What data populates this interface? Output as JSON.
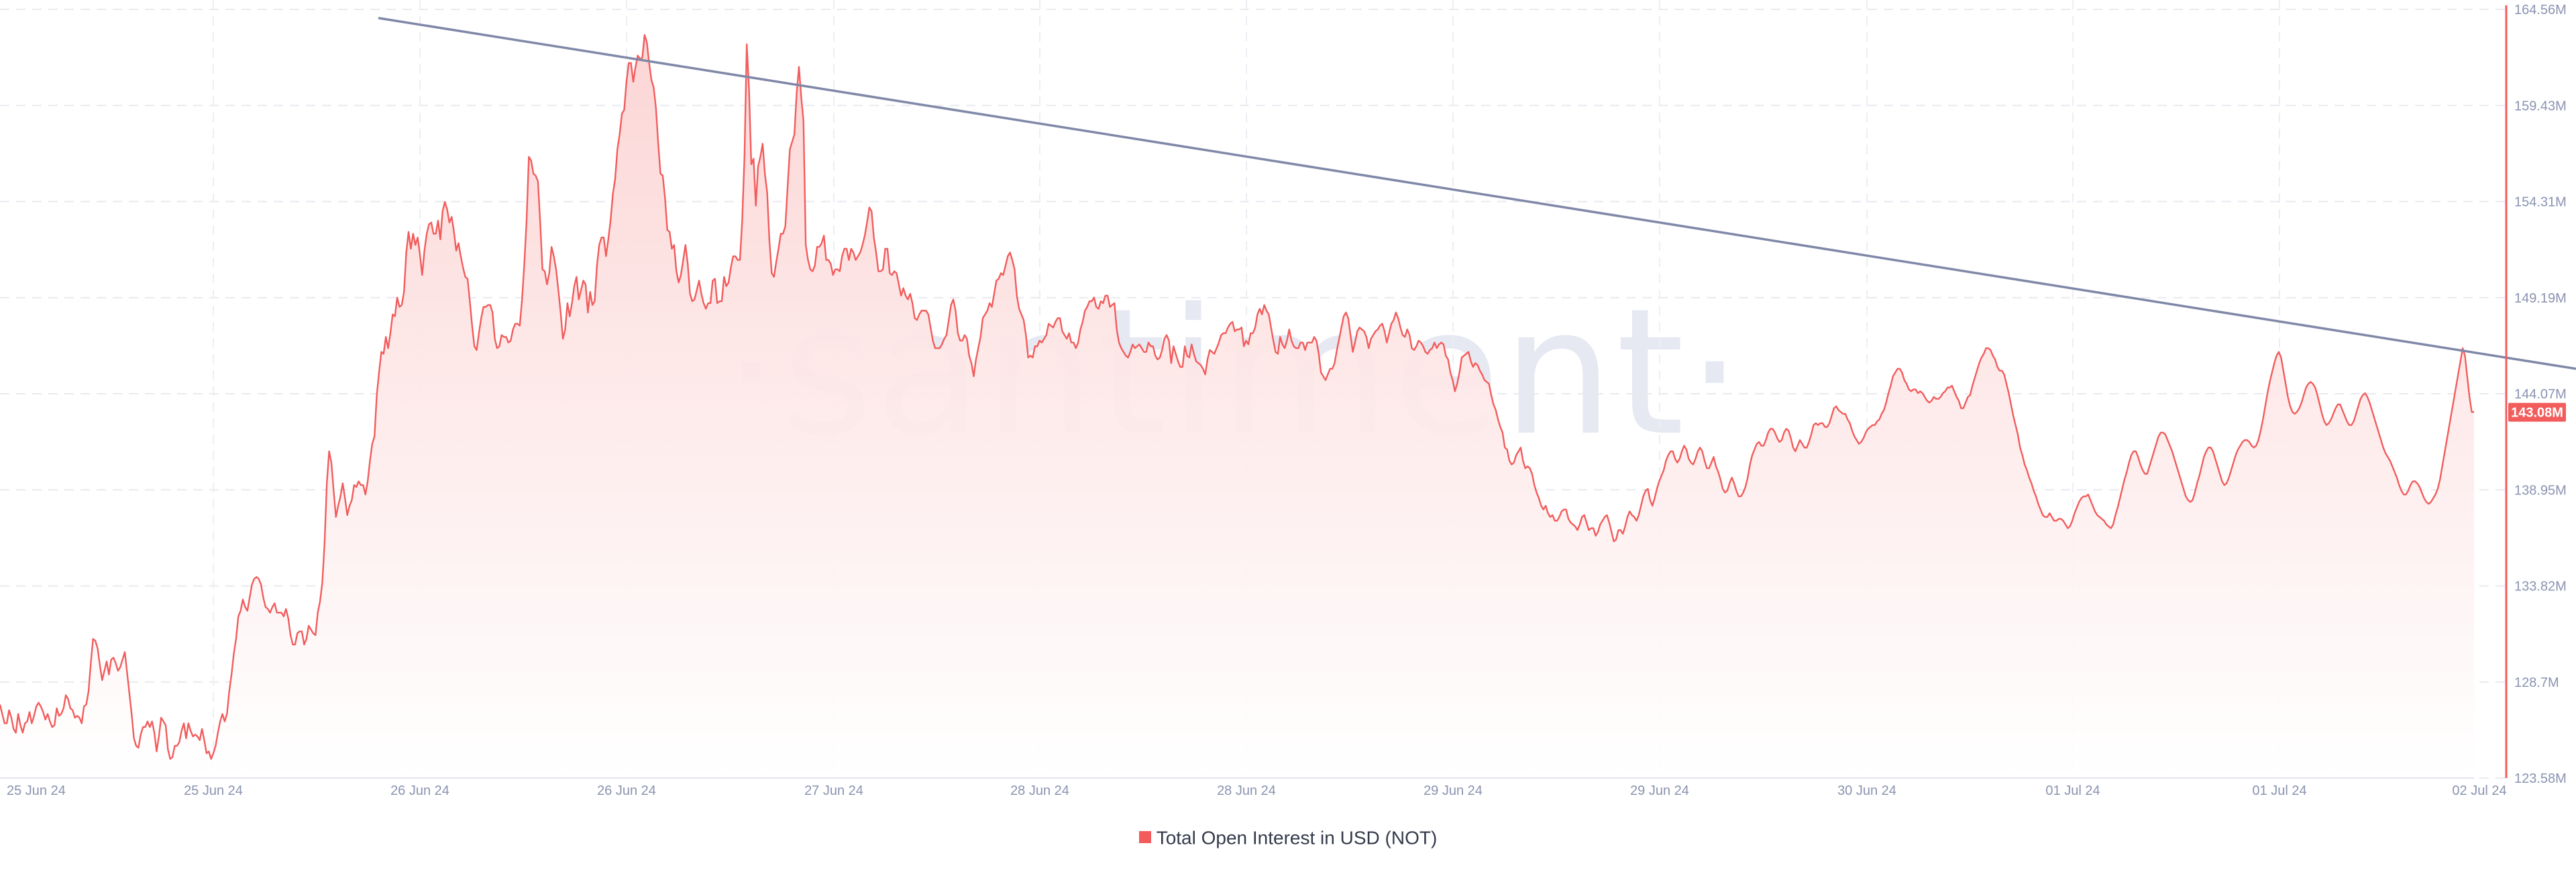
{
  "watermark": "·santiment·",
  "chart_data": {
    "type": "area",
    "series": [
      {
        "name": "Total Open Interest in USD (NOT)",
        "color": "#f25c5c",
        "fill_top": "#fcd3d3",
        "fill_bottom": "#ffffff",
        "values": [
          127.5,
          127.0,
          126.5,
          126.5,
          127.2,
          126.8,
          126.2,
          126.0,
          127.0,
          126.4,
          126.0,
          126.5,
          126.6,
          127.1,
          126.5,
          126.9,
          127.4,
          127.6,
          127.4,
          127.1,
          126.7,
          127.0,
          126.6,
          126.3,
          126.4,
          127.3,
          126.9,
          127.0,
          127.3,
          128.0,
          127.8,
          127.3,
          127.2,
          126.8,
          126.9,
          126.8,
          126.5,
          127.4,
          127.5,
          128.2,
          129.7,
          131.0,
          130.9,
          130.5,
          129.6,
          128.8,
          129.3,
          129.8,
          129.1,
          129.9,
          130.0,
          129.7,
          129.3,
          129.5,
          129.9,
          130.3,
          129.2,
          128.1,
          127.0,
          125.7,
          125.3,
          125.2,
          125.9,
          126.3,
          126.3,
          126.6,
          126.3,
          126.6,
          126.0,
          125.0,
          125.8,
          126.8,
          126.6,
          126.4,
          125.1,
          124.6,
          124.7,
          125.3,
          125.3,
          125.5,
          126.1,
          126.5,
          125.7,
          126.5,
          126.1,
          125.8,
          125.9,
          125.8,
          125.6,
          126.2,
          125.6,
          124.9,
          125.0,
          124.6,
          124.9,
          125.3,
          126.0,
          126.6,
          127.0,
          126.6,
          127.0,
          128.2,
          129.1,
          130.2,
          131.0,
          132.2,
          132.5,
          133.1,
          132.7,
          132.5,
          133.2,
          133.9,
          134.2,
          134.3,
          134.2,
          133.9,
          133.2,
          132.7,
          132.6,
          132.4,
          132.7,
          132.9,
          132.4,
          132.4,
          132.4,
          132.2,
          132.6,
          132.1,
          131.2,
          130.7,
          130.7,
          131.3,
          131.4,
          131.4,
          130.7,
          131.0,
          131.7,
          131.5,
          131.3,
          131.2,
          132.4,
          133.0,
          134.0,
          136.1,
          139.3,
          141.0,
          140.4,
          138.9,
          137.5,
          138.1,
          138.6,
          139.3,
          138.5,
          137.6,
          138.1,
          138.4,
          139.2,
          139.1,
          139.4,
          139.2,
          139.2,
          138.7,
          139.4,
          140.5,
          141.4,
          141.8,
          144.0,
          145.2,
          146.3,
          146.2,
          147.1,
          146.5,
          147.3,
          148.3,
          148.2,
          149.2,
          148.7,
          148.8,
          149.5,
          151.6,
          152.7,
          151.8,
          152.6,
          152.0,
          152.4,
          151.5,
          150.4,
          151.7,
          152.6,
          153.1,
          153.2,
          152.6,
          152.6,
          153.3,
          152.3,
          153.8,
          154.3,
          153.9,
          153.2,
          153.5,
          152.7,
          151.7,
          152.1,
          151.4,
          150.8,
          150.3,
          150.2,
          149.0,
          147.7,
          146.6,
          146.4,
          147.3,
          148.1,
          148.7,
          148.7,
          148.8,
          148.8,
          148.4,
          147.0,
          146.5,
          146.6,
          147.2,
          147.1,
          147.1,
          146.8,
          146.9,
          147.5,
          147.8,
          147.8,
          147.7,
          149.1,
          151.0,
          153.3,
          156.7,
          156.5,
          155.8,
          155.7,
          155.4,
          153.2,
          150.7,
          150.6,
          149.9,
          150.5,
          151.9,
          151.4,
          150.7,
          149.6,
          148.4,
          147.0,
          147.5,
          148.9,
          148.2,
          148.9,
          149.8,
          150.3,
          149.1,
          149.6,
          150.1,
          149.9,
          148.4,
          149.5,
          148.8,
          149.0,
          150.9,
          152.0,
          152.4,
          152.4,
          151.4,
          152.3,
          153.3,
          154.7,
          155.5,
          157.1,
          157.9,
          159.0,
          159.2,
          160.7,
          161.7,
          161.7,
          160.7,
          161.5,
          162.1,
          161.9,
          162.0,
          163.2,
          162.8,
          161.7,
          160.8,
          160.4,
          159.3,
          157.4,
          155.8,
          155.7,
          154.5,
          152.8,
          152.7,
          151.8,
          152.0,
          150.6,
          150.0,
          150.4,
          151.2,
          152.0,
          151.0,
          149.4,
          149.0,
          149.1,
          149.6,
          150.1,
          149.4,
          148.9,
          148.6,
          148.9,
          148.9,
          150.1,
          150.2,
          148.9,
          149.0,
          149.0,
          150.3,
          149.8,
          150.0,
          150.8,
          151.4,
          151.4,
          151.2,
          151.2,
          153.3,
          156.7,
          162.7,
          160.3,
          156.3,
          156.6,
          154.1,
          156.2,
          156.7,
          157.4,
          155.8,
          154.8,
          152.2,
          150.5,
          150.3,
          151.1,
          151.8,
          152.6,
          152.6,
          153.0,
          155.1,
          157.1,
          157.5,
          157.9,
          160.1,
          161.5,
          159.9,
          158.6,
          152.0,
          151.2,
          150.7,
          150.6,
          150.9,
          151.9,
          151.9,
          152.1,
          152.5,
          151.2,
          151.2,
          151.0,
          150.4,
          150.7,
          150.7,
          150.6,
          151.4,
          151.8,
          151.8,
          151.2,
          151.8,
          151.6,
          151.2,
          151.4,
          151.6,
          152.0,
          152.5,
          153.2,
          154.0,
          153.8,
          152.4,
          151.6,
          150.6,
          150.6,
          150.7,
          151.8,
          151.8,
          150.5,
          150.4,
          150.6,
          150.5,
          149.9,
          149.3,
          149.7,
          149.3,
          149.1,
          149.4,
          148.9,
          148.1,
          148.0,
          148.3,
          148.5,
          148.5,
          148.5,
          148.3,
          147.6,
          146.9,
          146.5,
          146.5,
          146.5,
          146.7,
          147.0,
          147.2,
          148.0,
          148.8,
          149.1,
          148.5,
          147.3,
          146.9,
          146.9,
          147.2,
          147.0,
          146.1,
          145.7,
          145.0,
          145.9,
          146.5,
          147.1,
          148.1,
          148.3,
          148.5,
          148.9,
          148.7,
          149.4,
          150.1,
          150.2,
          150.5,
          150.4,
          150.9,
          151.4,
          151.6,
          151.2,
          150.7,
          149.3,
          148.6,
          148.3,
          148.0,
          147.2,
          146.0,
          146.1,
          146.0,
          146.6,
          146.6,
          146.9,
          146.8,
          147.0,
          147.2,
          147.8,
          147.7,
          147.6,
          147.9,
          148.1,
          148.1,
          147.4,
          147.2,
          147.0,
          147.3,
          146.8,
          146.8,
          146.5,
          146.8,
          147.5,
          147.9,
          148.5,
          148.7,
          149.0,
          149.0,
          149.2,
          148.7,
          148.6,
          149.0,
          148.9,
          149.3,
          149.3,
          148.7,
          148.8,
          148.9,
          147.5,
          146.8,
          146.5,
          146.3,
          146.1,
          146.0,
          146.3,
          146.7,
          146.5,
          146.6,
          146.7,
          146.5,
          146.3,
          146.3,
          146.8,
          146.6,
          146.6,
          146.1,
          145.9,
          146.0,
          146.4,
          147.0,
          147.2,
          146.9,
          145.7,
          146.6,
          146.2,
          145.8,
          145.5,
          145.5,
          146.6,
          146.1,
          146.0,
          146.7,
          146.2,
          145.8,
          145.7,
          145.6,
          145.4,
          145.1,
          145.9,
          146.4,
          146.3,
          146.2,
          146.5,
          146.8,
          147.2,
          147.3,
          147.3,
          147.6,
          147.8,
          147.9,
          147.4,
          147.5,
          147.5,
          147.6,
          146.6,
          146.9,
          146.7,
          147.3,
          147.3,
          147.6,
          148.3,
          148.6,
          148.3,
          148.8,
          148.5,
          148.3,
          147.6,
          146.9,
          146.3,
          146.2,
          147.1,
          146.7,
          146.5,
          146.9,
          147.5,
          146.9,
          146.6,
          146.5,
          146.5,
          146.8,
          146.8,
          146.4,
          146.8,
          146.8,
          146.8,
          147.1,
          146.9,
          146.2,
          145.2,
          145.0,
          144.8,
          145.1,
          145.4,
          145.4,
          145.7,
          146.4,
          147.0,
          147.6,
          148.2,
          148.4,
          148.1,
          147.2,
          146.3,
          146.8,
          147.4,
          147.6,
          147.5,
          147.4,
          147.1,
          146.5,
          147.0,
          147.2,
          147.4,
          147.5,
          147.7,
          147.8,
          147.4,
          146.8,
          147.3,
          147.8,
          148.0,
          148.4,
          148.1,
          147.6,
          147.2,
          147.1,
          147.5,
          147.2,
          146.5,
          146.4,
          146.6,
          146.9,
          146.8,
          146.6,
          146.3,
          146.2,
          146.4,
          146.5,
          146.8,
          146.5,
          146.7,
          146.8,
          146.7,
          146.1,
          145.9,
          145.2,
          144.8,
          144.2,
          144.6,
          145.2,
          146.0,
          146.1,
          146.2,
          146.3,
          145.8,
          145.5,
          145.7,
          145.6,
          145.3,
          145.1,
          144.8,
          144.7,
          144.6,
          144.0,
          143.5,
          143.2,
          142.7,
          142.3,
          142.0,
          141.2,
          141.1,
          140.5,
          140.3,
          140.4,
          140.8,
          141.0,
          141.2,
          140.5,
          140.1,
          140.2,
          140.1,
          139.8,
          139.2,
          138.8,
          138.5,
          138.1,
          137.9,
          138.1,
          137.7,
          137.5,
          137.6,
          137.3,
          137.3,
          137.5,
          137.8,
          137.9,
          137.9,
          137.4,
          137.2,
          137.1,
          137.0,
          136.8,
          137.1,
          137.5,
          137.6,
          137.2,
          136.8,
          136.9,
          136.9,
          136.5,
          136.7,
          137.1,
          137.3,
          137.5,
          137.6,
          137.2,
          136.7,
          136.2,
          136.3,
          136.8,
          136.8,
          136.6,
          137.0,
          137.5,
          137.8,
          137.6,
          137.5,
          137.3,
          137.6,
          138.1,
          138.6,
          138.9,
          139.0,
          138.4,
          138.1,
          138.5,
          139.0,
          139.4,
          139.7,
          140.0,
          140.5,
          140.8,
          141.0,
          141.0,
          140.6,
          140.4,
          140.6,
          141.0,
          141.3,
          141.1,
          140.6,
          140.4,
          140.3,
          140.6,
          141.0,
          141.2,
          141.0,
          140.5,
          140.1,
          140.1,
          140.4,
          140.7,
          140.2,
          139.9,
          139.5,
          139.0,
          138.8,
          138.9,
          139.3,
          139.6,
          139.3,
          138.9,
          138.6,
          138.6,
          138.8,
          139.1,
          139.6,
          140.3,
          140.8,
          141.1,
          141.4,
          141.5,
          141.3,
          141.3,
          141.6,
          142.0,
          142.2,
          142.2,
          142.0,
          141.7,
          141.5,
          141.6,
          142.0,
          142.2,
          142.1,
          141.7,
          141.2,
          141.0,
          141.3,
          141.6,
          141.4,
          141.2,
          141.2,
          141.5,
          141.9,
          142.4,
          142.5,
          142.4,
          142.5,
          142.5,
          142.3,
          142.3,
          142.5,
          142.9,
          143.3,
          143.4,
          143.2,
          143.1,
          143.0,
          143.0,
          142.7,
          142.5,
          142.1,
          141.8,
          141.6,
          141.4,
          141.5,
          141.7,
          142.0,
          142.2,
          142.3,
          142.4,
          142.4,
          142.6,
          142.7,
          143.0,
          143.2,
          143.6,
          144.1,
          144.5,
          145.0,
          145.2,
          145.4,
          145.4,
          145.2,
          144.8,
          144.6,
          144.3,
          144.2,
          144.3,
          144.3,
          144.1,
          144.2,
          144.1,
          143.9,
          143.7,
          143.6,
          143.7,
          143.9,
          143.8,
          143.8,
          143.9,
          144.1,
          144.2,
          144.4,
          144.4,
          144.5,
          144.2,
          143.9,
          143.7,
          143.3,
          143.3,
          143.6,
          143.9,
          144.0,
          144.5,
          144.9,
          145.3,
          145.7,
          146.0,
          146.2,
          146.5,
          146.5,
          146.4,
          146.1,
          145.9,
          145.5,
          145.3,
          145.3,
          145.1,
          144.6,
          144.1,
          143.5,
          142.9,
          142.4,
          141.9,
          141.2,
          140.8,
          140.3,
          140.0,
          139.6,
          139.3,
          138.9,
          138.6,
          138.2,
          137.9,
          137.6,
          137.5,
          137.5,
          137.7,
          137.5,
          137.3,
          137.3,
          137.4,
          137.4,
          137.3,
          137.1,
          136.9,
          137.0,
          137.3,
          137.7,
          138.0,
          138.3,
          138.5,
          138.6,
          138.6,
          138.7,
          138.4,
          138.1,
          137.8,
          137.6,
          137.5,
          137.4,
          137.3,
          137.1,
          137.0,
          136.9,
          137.1,
          137.6,
          138.0,
          138.5,
          139.0,
          139.5,
          139.9,
          140.4,
          140.8,
          141.0,
          141.0,
          140.7,
          140.3,
          140.0,
          139.8,
          139.8,
          140.2,
          140.6,
          141.0,
          141.4,
          141.8,
          142.0,
          142.0,
          141.9,
          141.6,
          141.3,
          141.0,
          140.6,
          140.2,
          139.8,
          139.4,
          139.0,
          138.6,
          138.4,
          138.3,
          138.4,
          138.8,
          139.3,
          139.7,
          140.2,
          140.7,
          141.0,
          141.2,
          141.2,
          141.0,
          140.6,
          140.2,
          139.8,
          139.4,
          139.2,
          139.3,
          139.6,
          140.0,
          140.4,
          140.8,
          141.1,
          141.3,
          141.5,
          141.6,
          141.6,
          141.5,
          141.3,
          141.2,
          141.3,
          141.6,
          142.1,
          142.7,
          143.4,
          144.1,
          144.7,
          145.2,
          145.7,
          146.1,
          146.3,
          146.0,
          145.3,
          144.6,
          143.9,
          143.4,
          143.1,
          143.0,
          143.1,
          143.3,
          143.6,
          144.0,
          144.4,
          144.6,
          144.7,
          144.6,
          144.4,
          144.0,
          143.5,
          143.0,
          142.6,
          142.4,
          142.5,
          142.7,
          143.0,
          143.3,
          143.5,
          143.5,
          143.2,
          142.9,
          142.6,
          142.4,
          142.4,
          142.6,
          143.0,
          143.4,
          143.8,
          144.0,
          144.1,
          143.9,
          143.6,
          143.2,
          142.8,
          142.4,
          142.0,
          141.6,
          141.2,
          140.9,
          140.7,
          140.5,
          140.2,
          139.9,
          139.6,
          139.2,
          138.9,
          138.7,
          138.7,
          138.9,
          139.2,
          139.4,
          139.4,
          139.3,
          139.1,
          138.8,
          138.5,
          138.3,
          138.2,
          138.3,
          138.5,
          138.7,
          139.0,
          139.5,
          140.2,
          140.9,
          141.6,
          142.3,
          143.0,
          143.7,
          144.4,
          145.1,
          145.8,
          146.5,
          146.1,
          145.0,
          143.9,
          143.1,
          143.1
        ]
      }
    ],
    "y_ticks": [
      "123.58M",
      "128.7M",
      "133.82M",
      "138.95M",
      "144.07M",
      "149.19M",
      "154.31M",
      "159.43M",
      "164.56M"
    ],
    "ylim": [
      123.58,
      164.56
    ],
    "x_ticks": [
      "25 Jun 24",
      "25 Jun 24",
      "26 Jun 24",
      "26 Jun 24",
      "27 Jun 24",
      "28 Jun 24",
      "28 Jun 24",
      "29 Jun 24",
      "29 Jun 24",
      "30 Jun 24",
      "01 Jul 24",
      "01 Jul 24",
      "02 Jul 24"
    ],
    "current_value_label": "143.08M",
    "current_value": 143.08,
    "trendline": {
      "start_value": 164.1,
      "end_value": 145.4,
      "color": "#8088a8"
    },
    "legend": [
      {
        "label": "Total Open Interest in USD (NOT)",
        "color": "#f25c5c"
      }
    ],
    "legend_position": "bottom-center",
    "grid": true,
    "title": ""
  }
}
